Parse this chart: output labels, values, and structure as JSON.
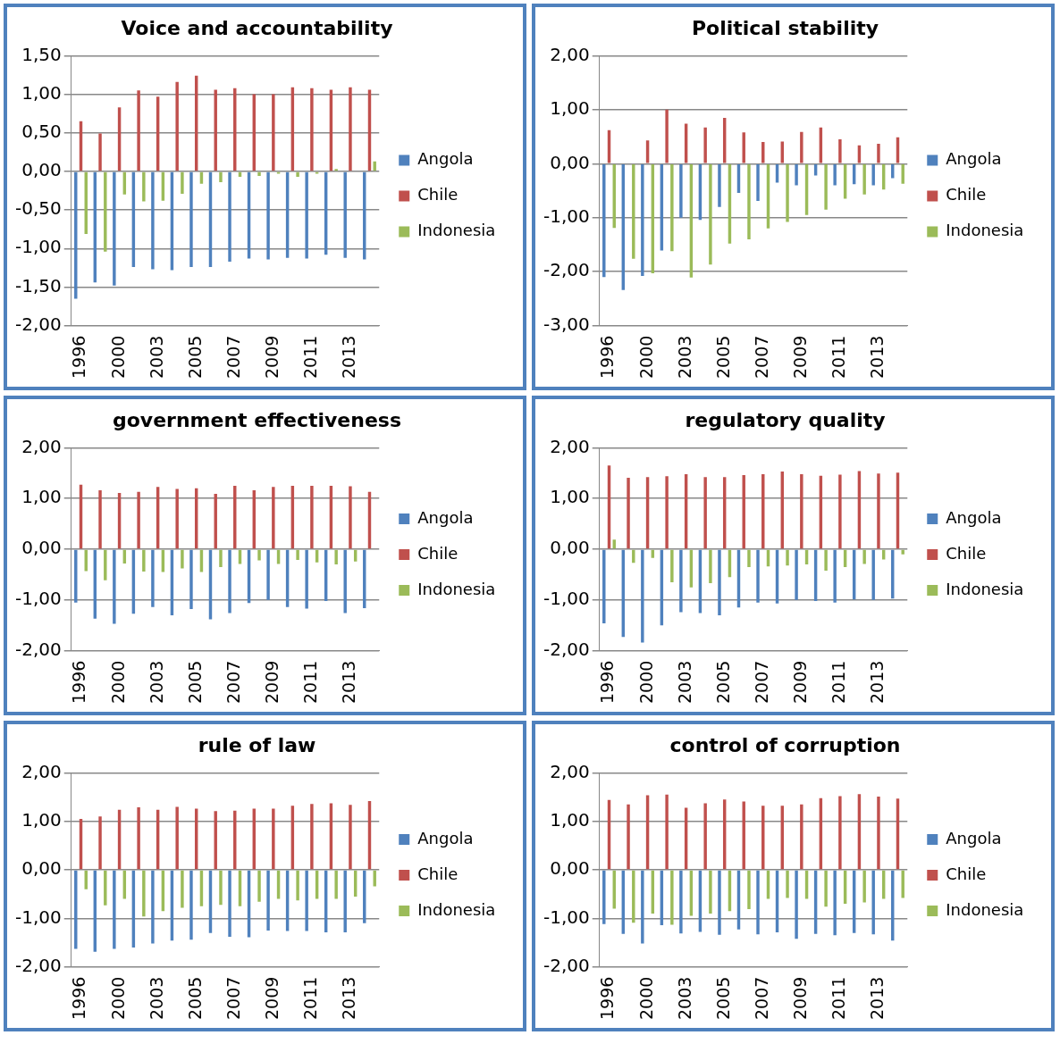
{
  "chart_data": [
    {
      "type": "bar",
      "title": "Voice and accountability",
      "categories": [
        "1996",
        null,
        "2000",
        null,
        "2003",
        null,
        "2005",
        null,
        "2007",
        null,
        "2009",
        null,
        "2011",
        null,
        "2013",
        null
      ],
      "ylim": [
        -2,
        1.5
      ],
      "yticks": [
        {
          "value": -2,
          "label": "-2,00"
        },
        {
          "value": -1.5,
          "label": "-1,50"
        },
        {
          "value": -1,
          "label": "-1,00"
        },
        {
          "value": -0.5,
          "label": "-0,50"
        },
        {
          "value": 0,
          "label": "0,00"
        },
        {
          "value": 0.5,
          "label": "0,50"
        },
        {
          "value": 1,
          "label": "1,00"
        },
        {
          "value": 1.5,
          "label": "1,50"
        }
      ],
      "grid": "y",
      "legend": "right",
      "series": [
        {
          "name": "Angola",
          "color": "#4f81bd",
          "values": [
            -1.65,
            -1.44,
            -1.48,
            -1.24,
            -1.27,
            -1.28,
            -1.24,
            -1.24,
            -1.17,
            -1.13,
            -1.14,
            -1.12,
            -1.13,
            -1.08,
            -1.12,
            -1.14
          ]
        },
        {
          "name": "Chile",
          "color": "#c0504d",
          "values": [
            0.65,
            0.49,
            0.83,
            1.05,
            0.97,
            1.16,
            1.24,
            1.06,
            1.08,
            1.0,
            1.0,
            1.09,
            1.08,
            1.06,
            1.09,
            1.06
          ]
        },
        {
          "name": "Indonesia",
          "color": "#9bbb59",
          "values": [
            -0.81,
            -1.04,
            -0.3,
            -0.39,
            -0.38,
            -0.29,
            -0.16,
            -0.14,
            -0.07,
            -0.06,
            -0.03,
            -0.07,
            -0.03,
            0.03,
            null,
            0.13
          ]
        }
      ]
    },
    {
      "type": "bar",
      "title": "Political stability",
      "categories": [
        "1996",
        null,
        "2000",
        null,
        "2003",
        null,
        "2005",
        null,
        "2007",
        null,
        "2009",
        null,
        "2011",
        null,
        "2013",
        null
      ],
      "ylim": [
        -3,
        2
      ],
      "yticks": [
        {
          "value": -3,
          "label": "-3,00"
        },
        {
          "value": -2,
          "label": "-2,00"
        },
        {
          "value": -1,
          "label": "-1,00"
        },
        {
          "value": 0,
          "label": "0,00"
        },
        {
          "value": 1,
          "label": "1,00"
        },
        {
          "value": 2,
          "label": "2,00"
        }
      ],
      "grid": "y",
      "legend": "right",
      "series": [
        {
          "name": "Angola",
          "color": "#4f81bd",
          "values": [
            -2.1,
            -2.34,
            -2.08,
            -1.61,
            -1.0,
            -1.04,
            -0.8,
            -0.54,
            -0.69,
            -0.35,
            -0.4,
            -0.22,
            -0.4,
            -0.38,
            -0.4,
            -0.27
          ]
        },
        {
          "name": "Chile",
          "color": "#c0504d",
          "values": [
            0.62,
            null,
            0.43,
            1.0,
            0.74,
            0.67,
            0.85,
            0.58,
            0.4,
            0.41,
            0.59,
            0.67,
            0.45,
            0.34,
            0.37,
            0.49
          ]
        },
        {
          "name": "Indonesia",
          "color": "#9bbb59",
          "values": [
            -1.19,
            -1.76,
            -2.03,
            -1.62,
            -2.11,
            -1.87,
            -1.48,
            -1.4,
            -1.2,
            -1.08,
            -0.95,
            -0.85,
            -0.65,
            -0.57,
            -0.48,
            -0.37
          ]
        }
      ]
    },
    {
      "type": "bar",
      "title": "government effectiveness",
      "categories": [
        "1996",
        null,
        "2000",
        null,
        "2003",
        null,
        "2005",
        null,
        "2007",
        null,
        "2009",
        null,
        "2011",
        null,
        "2013",
        null
      ],
      "ylim": [
        -2,
        2
      ],
      "yticks": [
        {
          "value": -2,
          "label": "-2,00"
        },
        {
          "value": -1,
          "label": "-1,00"
        },
        {
          "value": 0,
          "label": "0,00"
        },
        {
          "value": 1,
          "label": "1,00"
        },
        {
          "value": 2,
          "label": "2,00"
        }
      ],
      "grid": "y",
      "legend": "right",
      "series": [
        {
          "name": "Angola",
          "color": "#4f81bd",
          "values": [
            -1.05,
            -1.37,
            -1.47,
            -1.27,
            -1.14,
            -1.3,
            -1.18,
            -1.38,
            -1.26,
            -1.06,
            -1.0,
            -1.14,
            -1.17,
            -1.02,
            -1.26,
            -1.16
          ]
        },
        {
          "name": "Chile",
          "color": "#c0504d",
          "values": [
            1.27,
            1.16,
            1.11,
            1.13,
            1.23,
            1.19,
            1.2,
            1.09,
            1.25,
            1.16,
            1.23,
            1.25,
            1.25,
            1.25,
            1.24,
            1.13
          ]
        },
        {
          "name": "Indonesia",
          "color": "#9bbb59",
          "values": [
            -0.43,
            -0.61,
            -0.28,
            -0.44,
            -0.45,
            -0.38,
            -0.45,
            -0.35,
            -0.29,
            -0.22,
            -0.29,
            -0.21,
            -0.26,
            -0.3,
            -0.24,
            null
          ]
        }
      ]
    },
    {
      "type": "bar",
      "title": "regulatory quality",
      "categories": [
        "1996",
        null,
        "2000",
        null,
        "2003",
        null,
        "2005",
        null,
        "2007",
        null,
        "2009",
        null,
        "2011",
        null,
        "2013",
        null
      ],
      "ylim": [
        -2,
        2
      ],
      "yticks": [
        {
          "value": -2,
          "label": "-2,00"
        },
        {
          "value": -1,
          "label": "-1,00"
        },
        {
          "value": 0,
          "label": "0,00"
        },
        {
          "value": 1,
          "label": "1,00"
        },
        {
          "value": 2,
          "label": "2,00"
        }
      ],
      "grid": "y",
      "legend": "right",
      "series": [
        {
          "name": "Angola",
          "color": "#4f81bd",
          "values": [
            -1.46,
            -1.73,
            -1.84,
            -1.5,
            -1.24,
            -1.26,
            -1.3,
            -1.15,
            -1.05,
            -1.07,
            -1.0,
            -1.02,
            -1.05,
            -0.99,
            -1.0,
            -0.97
          ]
        },
        {
          "name": "Chile",
          "color": "#c0504d",
          "values": [
            1.65,
            1.41,
            1.42,
            1.44,
            1.48,
            1.42,
            1.42,
            1.46,
            1.48,
            1.53,
            1.48,
            1.45,
            1.47,
            1.54,
            1.49,
            1.51
          ]
        },
        {
          "name": "Indonesia",
          "color": "#9bbb59",
          "values": [
            0.19,
            -0.27,
            -0.17,
            -0.65,
            -0.75,
            -0.67,
            -0.55,
            -0.35,
            -0.34,
            -0.32,
            -0.3,
            -0.42,
            -0.35,
            -0.29,
            -0.2,
            -0.1
          ]
        }
      ]
    },
    {
      "type": "bar",
      "title": "rule of law",
      "categories": [
        "1996",
        null,
        "2000",
        null,
        "2003",
        null,
        "2005",
        null,
        "2007",
        null,
        "2009",
        null,
        "2011",
        null,
        "2013",
        null
      ],
      "ylim": [
        -2,
        2
      ],
      "yticks": [
        {
          "value": -2,
          "label": "-2,00"
        },
        {
          "value": -1,
          "label": "-1,00"
        },
        {
          "value": 0,
          "label": "0,00"
        },
        {
          "value": 1,
          "label": "1,00"
        },
        {
          "value": 2,
          "label": "2,00"
        }
      ],
      "grid": "y",
      "legend": "right",
      "series": [
        {
          "name": "Angola",
          "color": "#4f81bd",
          "values": [
            -1.63,
            -1.69,
            -1.63,
            -1.6,
            -1.52,
            -1.46,
            -1.44,
            -1.3,
            -1.38,
            -1.39,
            -1.25,
            -1.26,
            -1.26,
            -1.29,
            -1.29,
            -1.1
          ]
        },
        {
          "name": "Chile",
          "color": "#c0504d",
          "values": [
            1.05,
            1.1,
            1.24,
            1.29,
            1.24,
            1.3,
            1.26,
            1.21,
            1.22,
            1.26,
            1.26,
            1.32,
            1.36,
            1.37,
            1.34,
            1.42
          ]
        },
        {
          "name": "Indonesia",
          "color": "#9bbb59",
          "values": [
            -0.4,
            -0.73,
            -0.6,
            -0.96,
            -0.85,
            -0.78,
            -0.75,
            -0.72,
            -0.75,
            -0.66,
            -0.6,
            -0.63,
            -0.6,
            -0.6,
            -0.55,
            -0.34
          ]
        }
      ]
    },
    {
      "type": "bar",
      "title": "control of corruption",
      "categories": [
        "1996",
        null,
        "2000",
        null,
        "2003",
        null,
        "2005",
        null,
        "2007",
        null,
        "2009",
        null,
        "2011",
        null,
        "2013",
        null
      ],
      "ylim": [
        -2,
        2
      ],
      "yticks": [
        {
          "value": -2,
          "label": "-2,00"
        },
        {
          "value": -1,
          "label": "-1,00"
        },
        {
          "value": 0,
          "label": "0,00"
        },
        {
          "value": 1,
          "label": "1,00"
        },
        {
          "value": 2,
          "label": "2,00"
        }
      ],
      "grid": "y",
      "legend": "right",
      "series": [
        {
          "name": "Angola",
          "color": "#4f81bd",
          "values": [
            -1.12,
            -1.32,
            -1.52,
            -1.14,
            -1.31,
            -1.28,
            -1.34,
            -1.23,
            -1.33,
            -1.29,
            -1.42,
            -1.32,
            -1.35,
            -1.3,
            -1.33,
            -1.46
          ]
        },
        {
          "name": "Chile",
          "color": "#c0504d",
          "values": [
            1.44,
            1.35,
            1.54,
            1.55,
            1.28,
            1.37,
            1.45,
            1.41,
            1.32,
            1.32,
            1.35,
            1.48,
            1.52,
            1.56,
            1.51,
            1.47
          ]
        },
        {
          "name": "Indonesia",
          "color": "#9bbb59",
          "values": [
            -0.8,
            -1.09,
            -0.9,
            -1.13,
            -0.95,
            -0.9,
            -0.85,
            -0.81,
            -0.6,
            -0.58,
            -0.6,
            -0.76,
            -0.7,
            -0.67,
            -0.6,
            -0.58
          ]
        }
      ]
    }
  ]
}
